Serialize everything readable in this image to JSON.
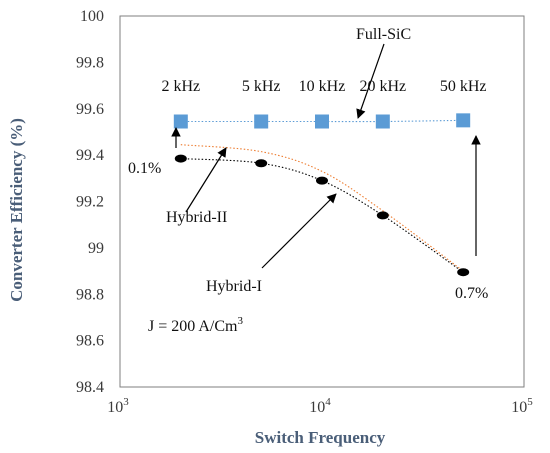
{
  "chart_data": {
    "type": "scatter",
    "xlabel": "Switch Frequency",
    "ylabel": "Converter Efficiency (%)",
    "x_scale": "log",
    "xlim": [
      1000,
      100000
    ],
    "ylim": [
      98.4,
      100
    ],
    "x_ticks": [
      {
        "value": 1000,
        "base": "10",
        "exp": "3"
      },
      {
        "value": 10000,
        "base": "10",
        "exp": "4"
      },
      {
        "value": 100000,
        "base": "10",
        "exp": "5"
      }
    ],
    "y_ticks": [
      "98.4",
      "98.6",
      "98.8",
      "99",
      "99.2",
      "99.4",
      "99.6",
      "99.8",
      "100"
    ],
    "grid": false,
    "series": [
      {
        "name": "Full-SiC",
        "marker": "square",
        "line": "dotted",
        "color": "#5b9bd5",
        "x": [
          2000,
          5000,
          10000,
          20000,
          50000
        ],
        "y": [
          99.545,
          99.545,
          99.545,
          99.545,
          99.55
        ]
      },
      {
        "name": "Hybrid-I",
        "marker": "ellipse",
        "line": "dotted",
        "color": "#000000",
        "x": [
          2000,
          5000,
          10000,
          20000,
          50000
        ],
        "y": [
          99.385,
          99.365,
          99.29,
          99.14,
          98.895
        ]
      },
      {
        "name": "Hybrid-II",
        "marker": "none",
        "line": "dotted",
        "color": "#ed7d31",
        "x": [
          2000,
          5000,
          10000,
          20000,
          50000
        ],
        "y": [
          99.445,
          99.415,
          99.33,
          99.16,
          98.9
        ]
      }
    ],
    "frequency_labels": [
      "2 kHz",
      "5 kHz",
      "10 kHz",
      "20 kHz",
      "50 kHz"
    ],
    "annotations": {
      "full_sic": "Full-SiC",
      "hybrid_ii": "Hybrid-II",
      "hybrid_i": "Hybrid-I",
      "diff_low": "0.1%",
      "diff_high": "0.7%",
      "current_density_prefix": "J = 200 A/Cm",
      "current_density_exp": "3"
    }
  }
}
